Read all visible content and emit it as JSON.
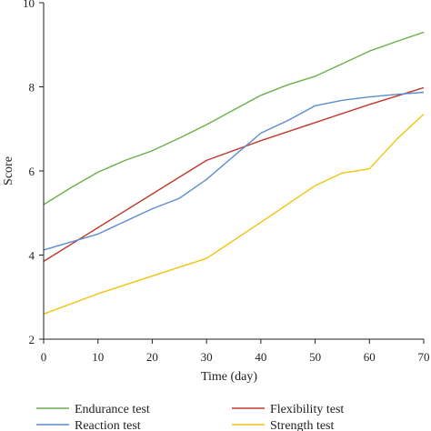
{
  "chart_data": {
    "type": "line",
    "xlabel": "Time (day)",
    "ylabel": "Score",
    "xlim": [
      0,
      70
    ],
    "ylim": [
      2,
      10
    ],
    "xticks": [
      "0",
      "10",
      "20",
      "30",
      "40",
      "50",
      "60",
      "70"
    ],
    "yticks": [
      "2",
      "4",
      "6",
      "8",
      "10"
    ],
    "grid": false,
    "legend_position": "bottom",
    "series": [
      {
        "name": "Endurance test",
        "color": "#6ab04c",
        "x": [
          0,
          5,
          10,
          15,
          20,
          25,
          30,
          35,
          40,
          45,
          50,
          55,
          60,
          65,
          70
        ],
        "y": [
          5.2,
          5.6,
          5.97,
          6.25,
          6.48,
          6.78,
          7.1,
          7.45,
          7.8,
          8.05,
          8.25,
          8.55,
          8.85,
          9.08,
          9.3
        ]
      },
      {
        "name": "Flexibility test",
        "color": "#c0392b",
        "x": [
          0,
          10,
          20,
          30,
          40,
          50,
          60,
          70
        ],
        "y": [
          3.85,
          4.65,
          5.45,
          6.25,
          6.72,
          7.15,
          7.58,
          7.98
        ]
      },
      {
        "name": "Reaction test",
        "color": "#5b8ccf",
        "x": [
          0,
          10,
          20,
          25,
          30,
          35,
          40,
          45,
          50,
          55,
          60,
          65,
          70
        ],
        "y": [
          4.12,
          4.5,
          5.1,
          5.35,
          5.8,
          6.35,
          6.9,
          7.2,
          7.55,
          7.68,
          7.76,
          7.82,
          7.87
        ]
      },
      {
        "name": "Strength test",
        "color": "#f1c40f",
        "x": [
          0,
          10,
          20,
          30,
          40,
          50,
          55,
          60,
          65,
          70
        ],
        "y": [
          2.6,
          3.08,
          3.5,
          3.92,
          4.78,
          5.65,
          5.95,
          6.05,
          6.75,
          7.35
        ]
      }
    ]
  }
}
